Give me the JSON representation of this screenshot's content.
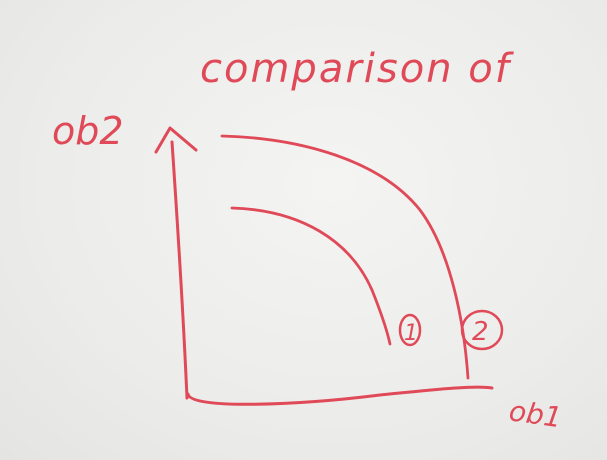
{
  "title": "comparison of",
  "y_axis_label": "ob2",
  "x_axis_label": "ob1",
  "curves": [
    {
      "label": "1"
    },
    {
      "label": "2"
    }
  ],
  "colors": {
    "ink": "#e04a58",
    "board": "#ececea"
  }
}
